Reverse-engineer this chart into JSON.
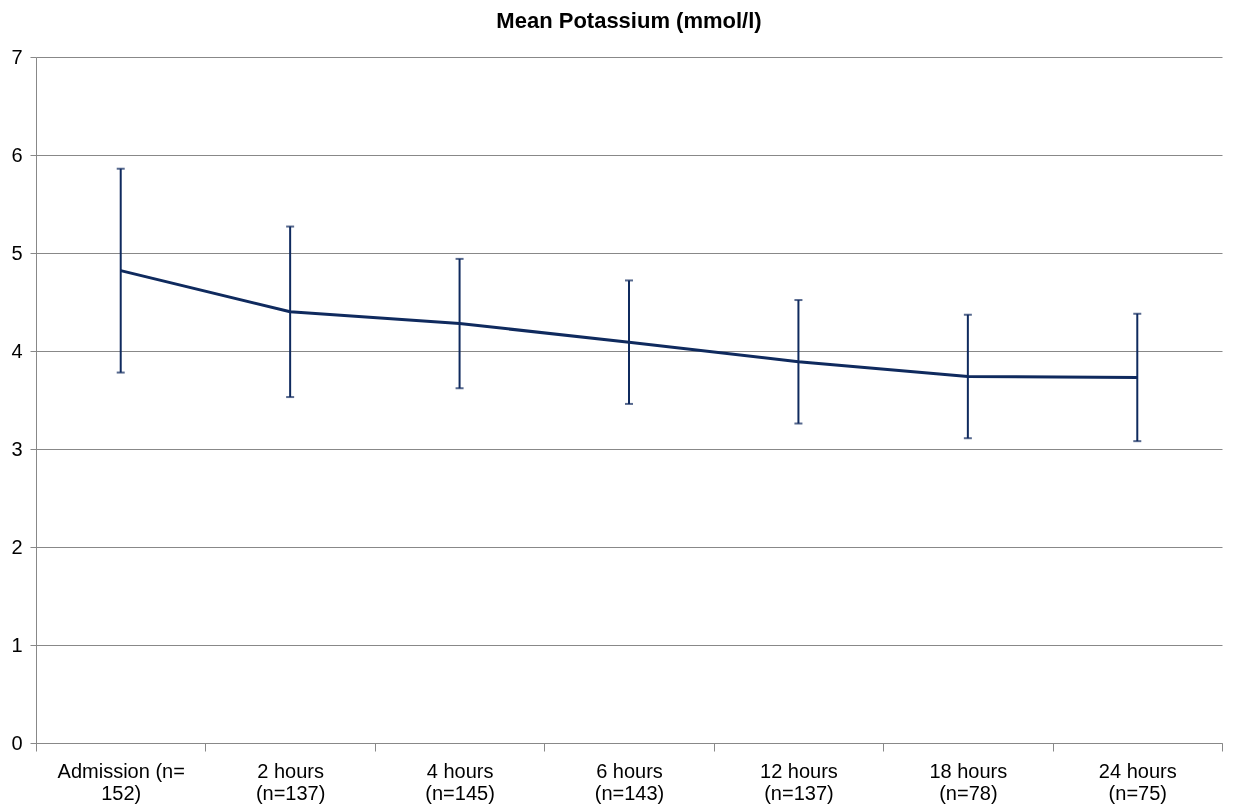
{
  "chart_data": {
    "type": "line",
    "title": "Mean Potassium (mmol/l)",
    "categories": [
      "Admission (n= 152)",
      "2 hours (n=137)",
      "4 hours (n=145)",
      "6 hours (n=143)",
      "12 hours (n=137)",
      "18 hours (n=78)",
      "24 hours (n=75)"
    ],
    "series": [
      {
        "color": "#0f2a5e",
        "values": [
          4.82,
          4.4,
          4.28,
          4.09,
          3.89,
          3.74,
          3.73
        ],
        "errors": [
          1.04,
          0.87,
          0.66,
          0.63,
          0.63,
          0.63,
          0.65
        ]
      }
    ],
    "ylim": [
      0,
      7
    ],
    "yticks": [
      0,
      1,
      2,
      3,
      4,
      5,
      6,
      7
    ],
    "grid": "y"
  }
}
